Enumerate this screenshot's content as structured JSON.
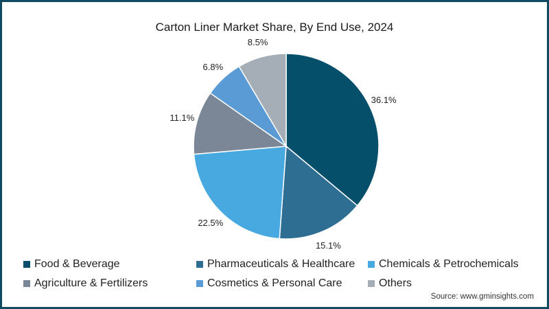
{
  "title": "Carton Liner Market Share, By End Use, 2024",
  "source": "Source: www.gminsights.com",
  "chart_data": {
    "type": "pie",
    "title": "Carton Liner Market Share, By End Use, 2024",
    "categories": [
      "Food & Beverage",
      "Pharmaceuticals & Healthcare",
      "Chemicals & Petrochemicals",
      "Agriculture & Fertilizers",
      "Cosmetics & Personal Care",
      "Others"
    ],
    "values": [
      36.1,
      15.1,
      22.5,
      11.1,
      6.8,
      8.5
    ],
    "labels": [
      "36.1%",
      "15.1%",
      "22.5%",
      "11.1%",
      "6.8%",
      "8.5%"
    ],
    "colors": [
      "#054f6b",
      "#2e6e92",
      "#47a9e0",
      "#7b8796",
      "#5b9bd5",
      "#a5aeb6"
    ],
    "start_angle": "12 o'clock, clockwise",
    "legend_position": "bottom"
  },
  "legend": [
    {
      "label": "Food & Beverage",
      "color": "#054f6b"
    },
    {
      "label": "Pharmaceuticals & Healthcare",
      "color": "#2e6e92"
    },
    {
      "label": "Chemicals & Petrochemicals",
      "color": "#47a9e0"
    },
    {
      "label": "Agriculture & Fertilizers",
      "color": "#7b8796"
    },
    {
      "label": "Cosmetics & Personal Care",
      "color": "#5b9bd5"
    },
    {
      "label": "Others",
      "color": "#a5aeb6"
    }
  ]
}
